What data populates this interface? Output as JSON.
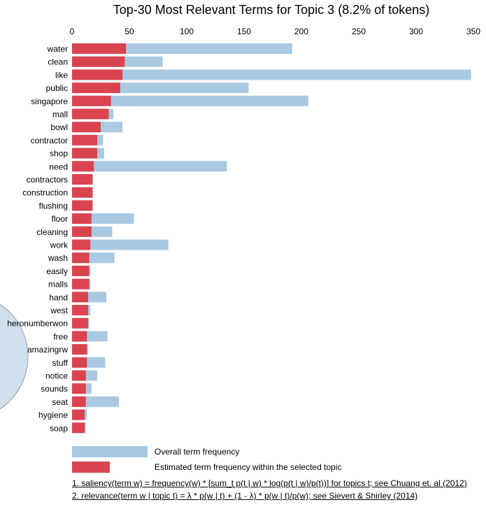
{
  "chart_data": {
    "type": "bar",
    "orientation": "horizontal",
    "title": "Top-30 Most Relevant Terms for Topic 3 (8.2% of tokens)",
    "xlim": [
      0,
      350
    ],
    "xticks": [
      0,
      50,
      100,
      150,
      200,
      250,
      300,
      350
    ],
    "grid": false,
    "categories": [
      "water",
      "clean",
      "like",
      "public",
      "singapore",
      "mall",
      "bowl",
      "contractor",
      "shop",
      "need",
      "contractors",
      "construction",
      "flushing",
      "floor",
      "cleaning",
      "work",
      "wash",
      "easily",
      "malls",
      "hand",
      "west",
      "heronumberwon",
      "free",
      "amazingrw",
      "stuff",
      "notice",
      "sounds",
      "seat",
      "hygiene",
      "soap"
    ],
    "series": [
      {
        "name": "Overall term frequency",
        "color": "#a9c9e3",
        "values": [
          192,
          79,
          348,
          154,
          206,
          36,
          44,
          27,
          28,
          135,
          18,
          18,
          18,
          54,
          35,
          84,
          37,
          16,
          16,
          30,
          16,
          15,
          31,
          14,
          29,
          22,
          17,
          41,
          13,
          12
        ]
      },
      {
        "name": "Estimated term frequency within the selected topic",
        "color": "#d9444f",
        "values": [
          47,
          46,
          44,
          42,
          34,
          32,
          25,
          22,
          22,
          19,
          18,
          18,
          18,
          17,
          17,
          16,
          15,
          15,
          15,
          14,
          14,
          14,
          13,
          13,
          13,
          12,
          12,
          12,
          11,
          11
        ]
      }
    ],
    "legend": [
      {
        "label": "Overall term frequency",
        "color": "#a9c9e3"
      },
      {
        "label": "Estimated term frequency within the selected topic",
        "color": "#d9444f"
      }
    ],
    "legend_position": "bottom"
  },
  "footnotes": [
    "1. saliency(term w) = frequency(w) * [sum_t p(t | w) * log(p(t | w)/p(t))] for topics t; see Chuang et. al (2012)",
    "2. relevance(term w | topic t) = λ * p(w | t) + (1 - λ) * p(w | t)/p(w); see Sievert & Shirley (2014)"
  ],
  "colors": {
    "circle_fill": "#cfe1ef",
    "circle_stroke": "#9a9a9a"
  }
}
